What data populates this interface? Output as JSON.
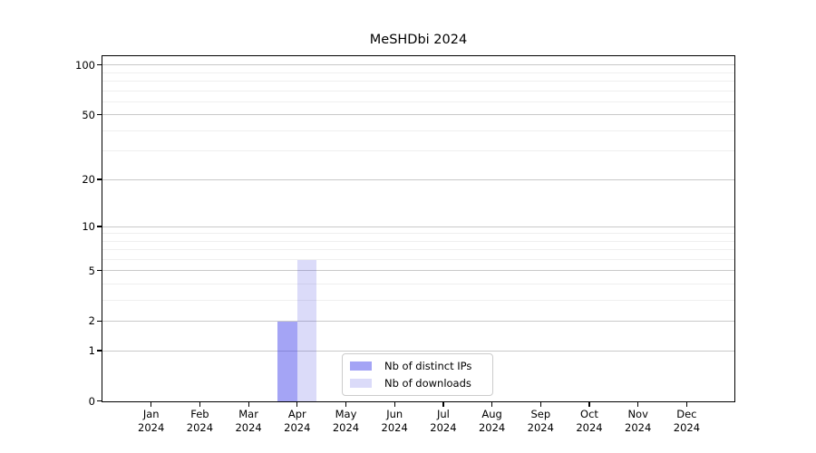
{
  "chart_data": {
    "type": "bar",
    "title": "MeSHDbi 2024",
    "categories": [
      "Jan",
      "Feb",
      "Mar",
      "Apr",
      "May",
      "Jun",
      "Jul",
      "Aug",
      "Sep",
      "Oct",
      "Nov",
      "Dec"
    ],
    "category_year": "2024",
    "series": [
      {
        "name": "Nb of distinct IPs",
        "color": "#a6a6f6",
        "fill": "rgba(65,65,235,0.48)",
        "values": [
          0,
          0,
          0,
          2,
          0,
          0,
          0,
          0,
          0,
          0,
          0,
          0
        ]
      },
      {
        "name": "Nb of downloads",
        "color": "#dbdbf9",
        "fill": "rgba(75,75,225,0.20)",
        "values": [
          0,
          0,
          0,
          6,
          0,
          0,
          0,
          0,
          0,
          0,
          0,
          0
        ]
      }
    ],
    "y_axis": {
      "scale": "log1p",
      "major_ticks": [
        0,
        1,
        2,
        5,
        10,
        20,
        50,
        100
      ],
      "minor_ticks": [
        3,
        4,
        6,
        7,
        8,
        9,
        30,
        40,
        60,
        70,
        80,
        90
      ],
      "ylim": [
        0,
        112
      ]
    },
    "xlabel": "",
    "ylabel": "",
    "grid": "horizontal-major-and-minor",
    "legend_position": "inside-bottom-center"
  }
}
